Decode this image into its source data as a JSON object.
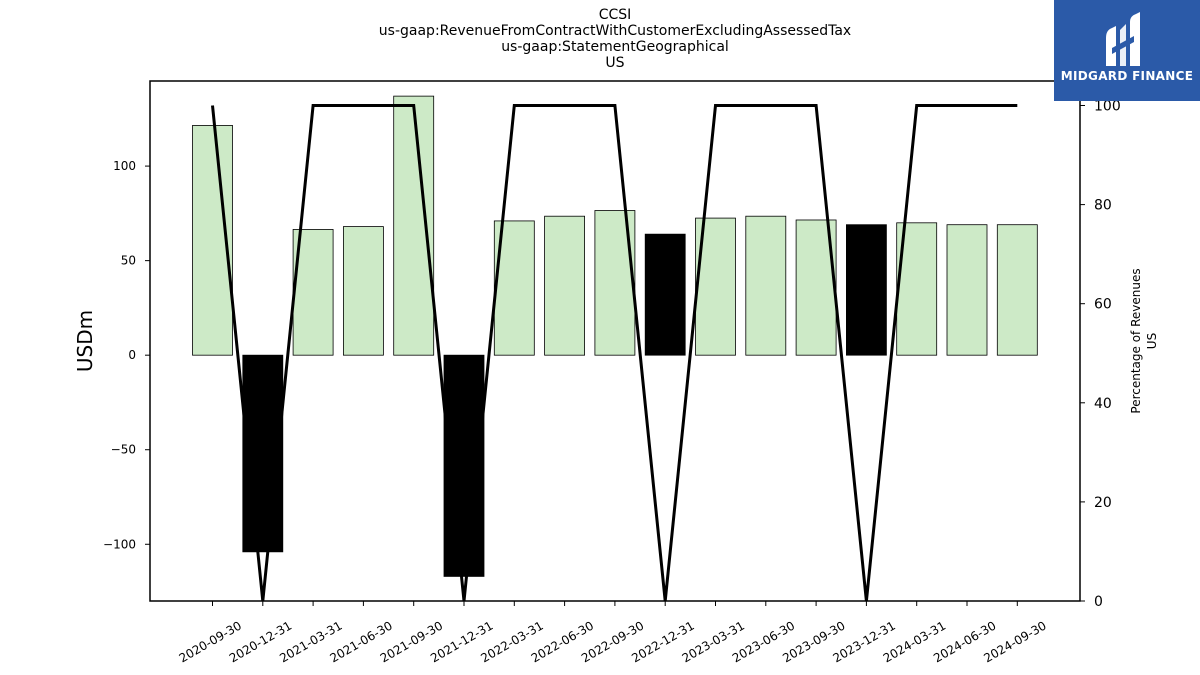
{
  "title_lines": [
    "CCSI",
    "us-gaap:RevenueFromContractWithCustomerExcludingAssessedTax",
    "us-gaap:StatementGeographical",
    "US"
  ],
  "logo": {
    "text": "MIDGARD FINANCE",
    "background": "#2b5aa8"
  },
  "colors": {
    "positive_bar": "#cdeac7",
    "negative_bar": "#000000",
    "line": "#000000"
  },
  "chart_data": {
    "type": "bar",
    "categories": [
      "2020-09-30",
      "2020-12-31",
      "2021-03-31",
      "2021-06-30",
      "2021-09-30",
      "2021-12-31",
      "2022-03-31",
      "2022-06-30",
      "2022-09-30",
      "2022-12-31",
      "2023-03-31",
      "2023-06-30",
      "2023-09-30",
      "2023-12-31",
      "2024-03-31",
      "2024-06-30",
      "2024-09-30"
    ],
    "values": [
      121.5,
      -104,
      66.5,
      68,
      137,
      -117,
      71,
      73.5,
      76.5,
      64,
      72.5,
      73.5,
      71.5,
      69,
      70,
      69,
      69
    ],
    "highlighted": [
      false,
      true,
      false,
      false,
      false,
      true,
      false,
      false,
      false,
      true,
      false,
      false,
      false,
      true,
      false,
      false,
      false
    ],
    "ylabel": "USDm",
    "ylim": [
      -130,
      145
    ],
    "yticks": [
      -100,
      -50,
      0,
      50,
      100
    ],
    "ytick_labels": [
      "−100",
      "−50",
      "0",
      "50",
      "100"
    ],
    "secondary": {
      "type": "line",
      "ylabel_lines": [
        "Percentage of Revenues",
        "US"
      ],
      "values": [
        100,
        0,
        100,
        100,
        100,
        0,
        100,
        100,
        100,
        0,
        100,
        100,
        100,
        0,
        100,
        100,
        100
      ],
      "ylim": [
        0,
        100
      ],
      "yticks": [
        0,
        20,
        40,
        60,
        80,
        100
      ]
    }
  }
}
